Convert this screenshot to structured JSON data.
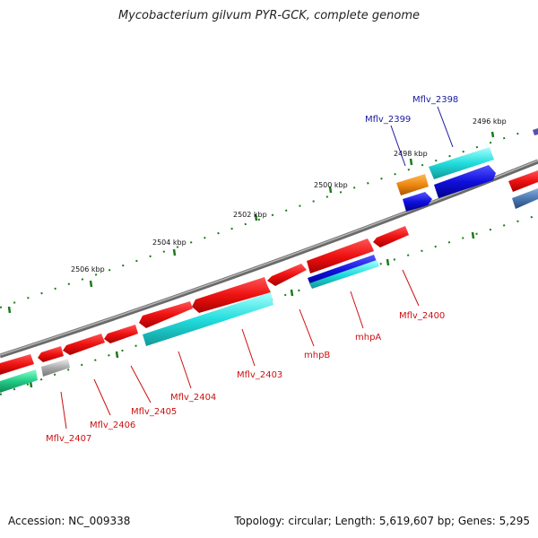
{
  "title": "Mycobacterium gilvum PYR-GCK, complete genome",
  "footer": {
    "accession": "Accession: NC_009338",
    "topology": "Topology: circular; Length: 5,619,607 bp; Genes: 5,295"
  },
  "kbp_labels": [
    "2496 kbp",
    "2498 kbp",
    "2500 kbp",
    "2502 kbp",
    "2504 kbp",
    "2506 kbp"
  ],
  "gene_labels_top": [
    {
      "text": "Mflv_2398",
      "color": "#1a1aa0"
    },
    {
      "text": "Mflv_2399",
      "color": "#1a1aa0"
    }
  ],
  "gene_labels_bottom": [
    {
      "text": "Mflv_2400",
      "color": "#cc1111"
    },
    {
      "text": "mhpA",
      "color": "#cc1111"
    },
    {
      "text": "mhpB",
      "color": "#cc1111"
    },
    {
      "text": "Mflv_2403",
      "color": "#cc1111"
    },
    {
      "text": "Mflv_2404",
      "color": "#cc1111"
    },
    {
      "text": "Mflv_2405",
      "color": "#cc1111"
    },
    {
      "text": "Mflv_2406",
      "color": "#cc1111"
    },
    {
      "text": "Mflv_2407",
      "color": "#cc1111"
    }
  ],
  "colors": {
    "backbone": "#808080",
    "tick_green": "#1a7a1a",
    "red": "#ee1111",
    "cyan": "#22dddd",
    "blue": "#1010dd",
    "orange": "#ee8811",
    "gray": "#aaaaaa",
    "teal": "#22cc88",
    "steel": "#4a7ab0",
    "purple": "#5555aa"
  }
}
